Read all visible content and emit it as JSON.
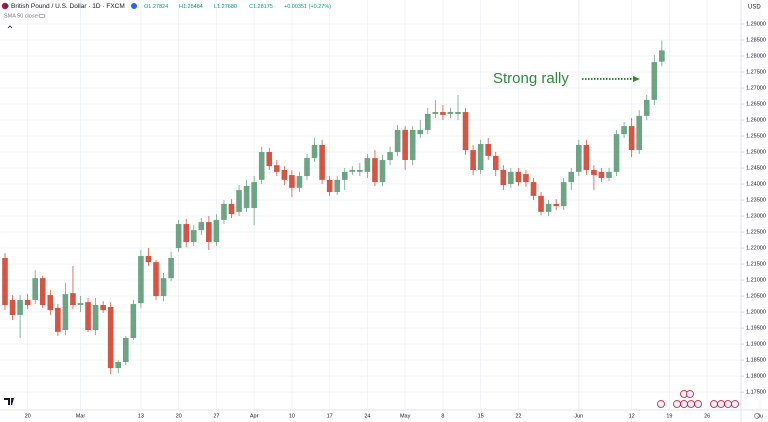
{
  "chart_data": {
    "type": "candlestick",
    "title": "British Pound / U.S. Dollar · 1D · FXCM",
    "ohlc_text": [
      "O1.27824",
      "H1.28484",
      "L1.27680",
      "C1.28175"
    ],
    "change": "+0.00351 (+0.27%)",
    "indicator": "SMA 50 close",
    "currency": "USD",
    "annotation": "Strong rally",
    "up_color": "#6ba583",
    "down_color": "#d75442",
    "grid": true,
    "categories": [
      null,
      null,
      null,
      "20",
      null,
      null,
      null,
      null,
      null,
      null,
      "Mar",
      null,
      null,
      null,
      null,
      null,
      null,
      null,
      "13",
      null,
      null,
      null,
      null,
      "20",
      null,
      null,
      null,
      null,
      "27",
      null,
      null,
      null,
      null,
      "Apr",
      null,
      null,
      null,
      null,
      "10",
      null,
      null,
      null,
      null,
      "17",
      null,
      null,
      null,
      null,
      "24",
      null,
      null,
      null,
      null,
      "May",
      null,
      null,
      null,
      null,
      "8",
      null,
      null,
      null,
      null,
      "15",
      null,
      null,
      null,
      null,
      "22",
      null,
      null,
      null,
      null,
      null,
      null,
      null,
      "Jun",
      null,
      null,
      null,
      null,
      null,
      null,
      "12",
      null,
      null,
      null,
      null,
      "19",
      null,
      null,
      null,
      null,
      "26",
      null,
      null,
      null,
      null,
      null,
      null,
      "Ju"
    ],
    "open": [
      1.2169,
      1.2038,
      1.1991,
      1.2038,
      1.2038,
      1.2106,
      1.2053,
      1.2013,
      1.1944,
      1.2059,
      1.2022,
      1.2031,
      1.1944,
      1.2022,
      1.2016,
      1.1825,
      1.1844,
      1.1919,
      1.2028,
      1.2175,
      1.2156,
      1.205,
      1.2106,
      1.22,
      1.2275,
      1.2219,
      1.2256,
      1.2281,
      1.2219,
      1.2288,
      1.2338,
      1.2313,
      1.2325,
      1.2325,
      1.2413,
      1.25,
      1.2459,
      1.2444,
      1.2428,
      1.2388,
      1.2425,
      1.2481,
      1.2522,
      1.2413,
      1.2375,
      1.2413,
      1.2438,
      1.2438,
      1.2438,
      1.2481,
      1.2406,
      1.2475,
      1.25,
      1.2569,
      1.2475,
      1.2556,
      1.2569,
      1.2619,
      1.2625,
      1.2619,
      1.2619,
      1.2625,
      1.2506,
      1.2444,
      1.2525,
      1.2488,
      1.2444,
      1.24,
      1.2438,
      1.2431,
      1.2406,
      1.2363,
      1.2313,
      1.2338,
      1.2331,
      1.2406,
      1.2438,
      1.2522,
      1.2444,
      1.2438,
      1.2419,
      1.2438,
      1.2556,
      1.2581,
      1.2506,
      1.2613,
      1.2663,
      1.27824,
      null,
      null,
      null,
      null,
      null,
      null,
      null,
      null,
      null,
      null,
      null,
      null,
      null
    ],
    "high": [
      1.2184,
      1.2053,
      1.2053,
      1.2056,
      1.2131,
      1.2113,
      1.2069,
      1.2025,
      1.2091,
      1.2144,
      1.205,
      1.2044,
      1.2044,
      1.2034,
      1.2031,
      1.185,
      1.1925,
      1.2038,
      1.2194,
      1.22,
      1.2163,
      1.2122,
      1.2188,
      1.2288,
      1.2291,
      1.2272,
      1.2294,
      1.23,
      1.2306,
      1.235,
      1.2353,
      1.2397,
      1.2413,
      1.2425,
      1.2516,
      1.2513,
      1.2475,
      1.2456,
      1.2444,
      1.2438,
      1.2494,
      1.2544,
      1.2538,
      1.2425,
      1.2425,
      1.245,
      1.2456,
      1.2466,
      1.2494,
      1.2506,
      1.2491,
      1.2516,
      1.2584,
      1.2581,
      1.2581,
      1.26,
      1.2638,
      1.2663,
      1.2647,
      1.2638,
      1.2678,
      1.2638,
      1.2522,
      1.2538,
      1.2544,
      1.25,
      1.2459,
      1.245,
      1.245,
      1.2444,
      1.2419,
      1.2375,
      1.235,
      1.2353,
      1.2419,
      1.245,
      1.2538,
      1.2538,
      1.2459,
      1.245,
      1.245,
      1.2569,
      1.2594,
      1.2606,
      1.2631,
      1.2678,
      1.2803,
      1.28484,
      null,
      null,
      null,
      null,
      null,
      null,
      null,
      null,
      null,
      null,
      null,
      null,
      null
    ],
    "low": [
      1.2006,
      1.1975,
      1.1919,
      1.2009,
      1.2025,
      1.2013,
      1.1991,
      1.1925,
      1.1928,
      1.2009,
      1.2,
      1.1938,
      1.1928,
      1.1997,
      1.1806,
      1.1809,
      1.1834,
      1.1913,
      1.2013,
      1.2144,
      1.2038,
      1.2034,
      1.2097,
      1.2188,
      1.2203,
      1.2206,
      1.2241,
      1.2194,
      1.2206,
      1.2275,
      1.2294,
      1.23,
      1.2313,
      1.2272,
      1.24,
      1.2444,
      1.2425,
      1.2397,
      1.2359,
      1.2375,
      1.2413,
      1.2469,
      1.24,
      1.2363,
      1.2366,
      1.2381,
      1.2428,
      1.2425,
      1.2419,
      1.2394,
      1.2394,
      1.2459,
      1.2488,
      1.2444,
      1.2459,
      1.2544,
      1.2556,
      1.2606,
      1.26,
      1.2606,
      1.26,
      1.2491,
      1.2428,
      1.2431,
      1.2475,
      1.2425,
      1.2381,
      1.2388,
      1.2394,
      1.2391,
      1.235,
      1.2303,
      1.23,
      1.2319,
      1.2319,
      1.2381,
      1.2425,
      1.2428,
      1.2381,
      1.2406,
      1.2409,
      1.2425,
      1.2544,
      1.2484,
      1.2494,
      1.26,
      1.2647,
      1.2768,
      null,
      null,
      null,
      null,
      null,
      null,
      null,
      null,
      null,
      null,
      null,
      null,
      null
    ],
    "close": [
      1.2022,
      1.1991,
      1.2038,
      1.2022,
      1.2106,
      1.2022,
      1.2006,
      1.1938,
      1.2056,
      1.2022,
      1.2028,
      1.1944,
      1.2022,
      1.2006,
      1.1825,
      1.1844,
      1.1919,
      1.2025,
      1.2175,
      1.2156,
      1.205,
      1.2106,
      1.2169,
      1.2275,
      1.2219,
      1.2256,
      1.2281,
      1.2219,
      1.2288,
      1.2338,
      1.2306,
      1.2381,
      1.2394,
      1.2406,
      1.25,
      1.2456,
      1.2438,
      1.2413,
      1.2388,
      1.2425,
      1.2481,
      1.2522,
      1.2413,
      1.2375,
      1.2413,
      1.2438,
      1.2444,
      1.2444,
      1.2481,
      1.2406,
      1.2475,
      1.25,
      1.2569,
      1.2475,
      1.2569,
      1.2569,
      1.2619,
      1.2625,
      1.2616,
      1.2625,
      1.2625,
      1.2506,
      1.2444,
      1.2525,
      1.2488,
      1.2444,
      1.2397,
      1.2438,
      1.2406,
      1.2406,
      1.2363,
      1.2313,
      1.2338,
      1.2331,
      1.2406,
      1.2438,
      1.2522,
      1.2444,
      1.2428,
      1.2419,
      1.2438,
      1.2556,
      1.2581,
      1.2506,
      1.2613,
      1.2663,
      1.2781,
      1.28175,
      null,
      null,
      null,
      null,
      null,
      null,
      null,
      null,
      null,
      null,
      null,
      null,
      null
    ],
    "ylim": [
      1.1694,
      1.2975
    ],
    "yticks": [
      {
        "value": 1.175,
        "label": "1.17500"
      },
      {
        "value": 1.18,
        "label": "1.18000"
      },
      {
        "value": 1.185,
        "label": "1.18500"
      },
      {
        "value": 1.19,
        "label": "1.19000"
      },
      {
        "value": 1.195,
        "label": "1.19500"
      },
      {
        "value": 1.2,
        "label": "1.20000"
      },
      {
        "value": 1.205,
        "label": "1.20500"
      },
      {
        "value": 1.21,
        "label": "1.21000"
      },
      {
        "value": 1.215,
        "label": "1.21500"
      },
      {
        "value": 1.22,
        "label": "1.22000"
      },
      {
        "value": 1.225,
        "label": "1.22500"
      },
      {
        "value": 1.23,
        "label": "1.23000"
      },
      {
        "value": 1.235,
        "label": "1.23500"
      },
      {
        "value": 1.24,
        "label": "1.24000"
      },
      {
        "value": 1.245,
        "label": "1.24500"
      },
      {
        "value": 1.25,
        "label": "1.25000"
      },
      {
        "value": 1.255,
        "label": "1.25500"
      },
      {
        "value": 1.26,
        "label": "1.26000"
      },
      {
        "value": 1.265,
        "label": "1.26500"
      },
      {
        "value": 1.27,
        "label": "1.27000"
      },
      {
        "value": 1.275,
        "label": "1.27500"
      },
      {
        "value": 1.28,
        "label": "1.28000"
      },
      {
        "value": 1.285,
        "label": "1.28500"
      },
      {
        "value": 1.29,
        "label": "1.29000"
      }
    ]
  }
}
